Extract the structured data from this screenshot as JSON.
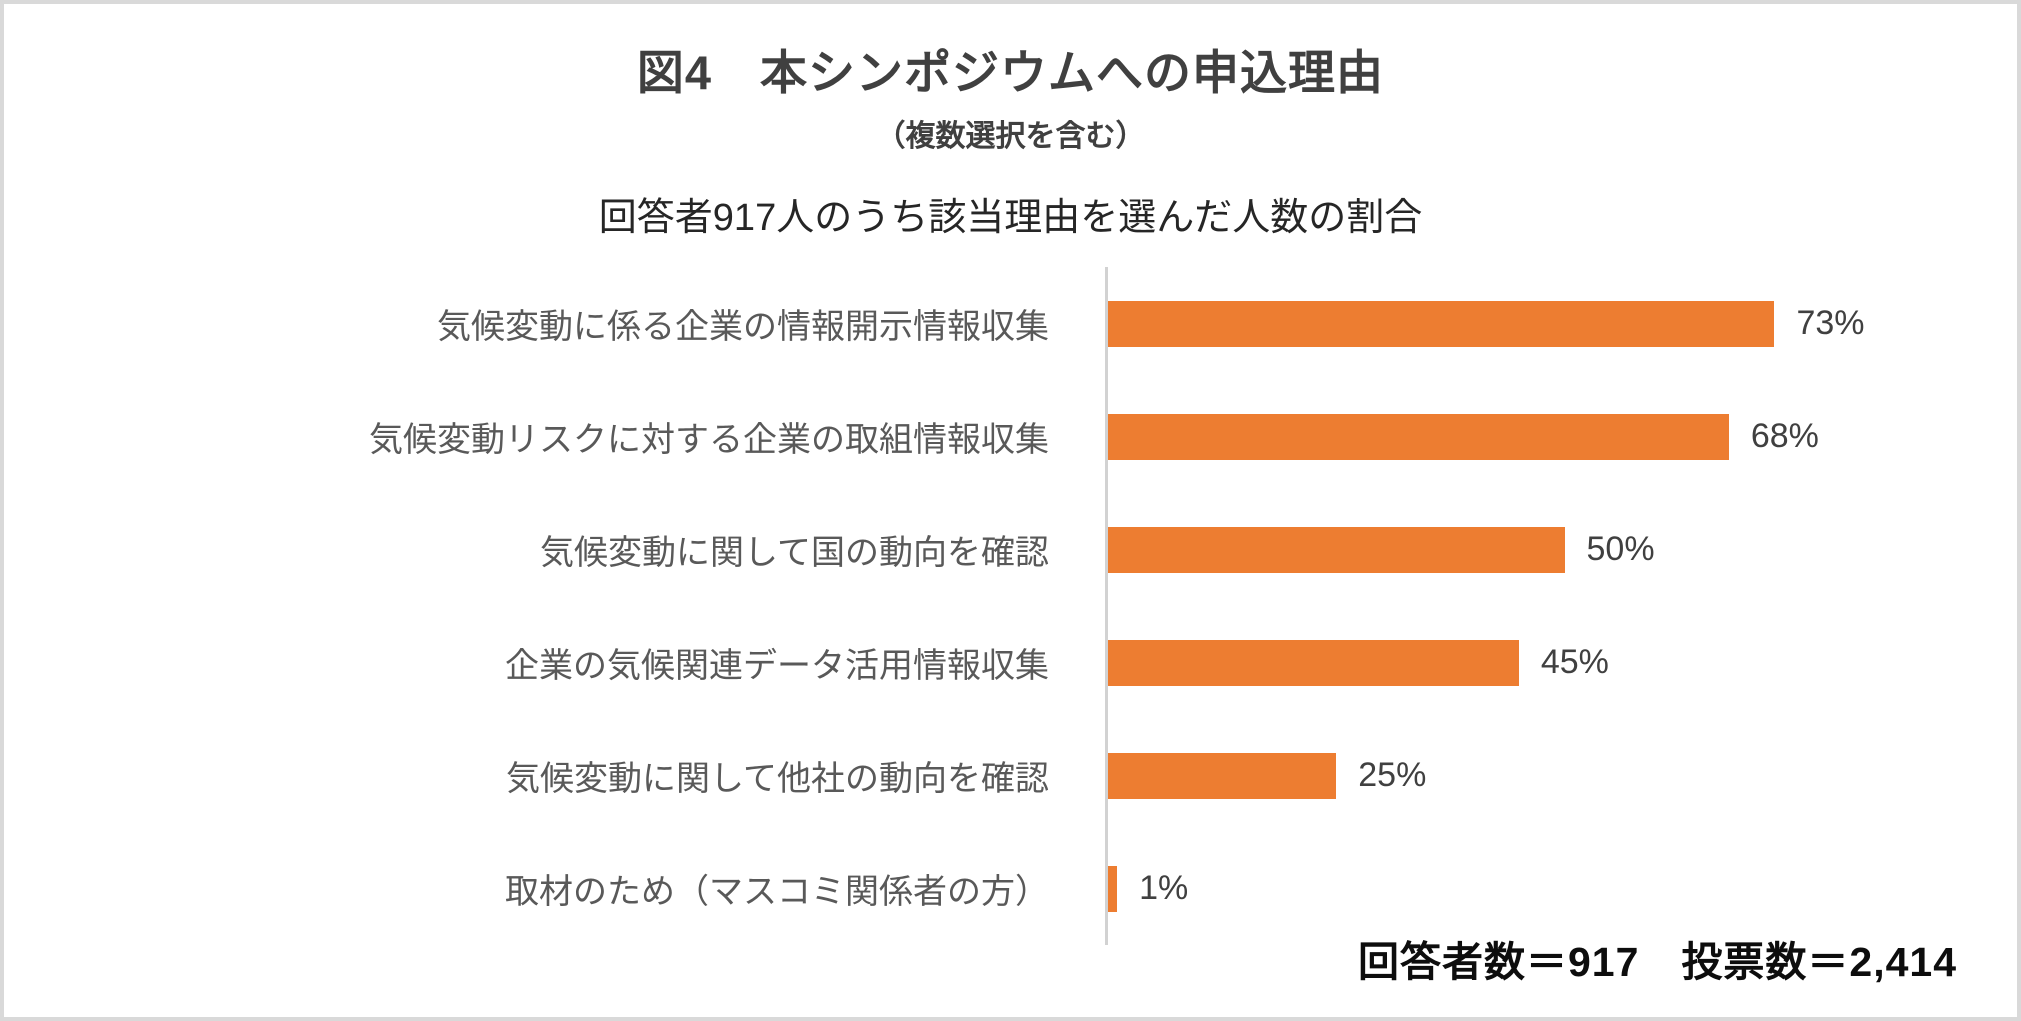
{
  "header": {
    "title": "図4　本シンポジウムへの申込理由",
    "subtitle": "（複数選択を含む）"
  },
  "chart_data": {
    "type": "bar",
    "orientation": "horizontal",
    "title": "回答者917人のうち該当理由を選んだ人数の割合",
    "categories": [
      "気候変動に係る企業の情報開示情報収集",
      "気候変動リスクに対する企業の取組情報収集",
      "気候変動に関して国の動向を確認",
      "企業の気候関連データ活用情報収集",
      "気候変動に関して他社の動向を確認",
      "取材のため（マスコミ関係者の方）"
    ],
    "values": [
      73,
      68,
      50,
      45,
      25,
      1
    ],
    "value_labels": [
      "73%",
      "68%",
      "50%",
      "45%",
      "25%",
      "1%"
    ],
    "value_suffix": "%",
    "xlim": [
      0,
      100
    ],
    "grid": false,
    "legend": false,
    "bar_color": "#ED7D31",
    "axis_color": "#D2D2D2",
    "label_color": "#595959",
    "value_label_color": "#404040"
  },
  "footer": {
    "note": "回答者数＝917　投票数＝2,414"
  }
}
